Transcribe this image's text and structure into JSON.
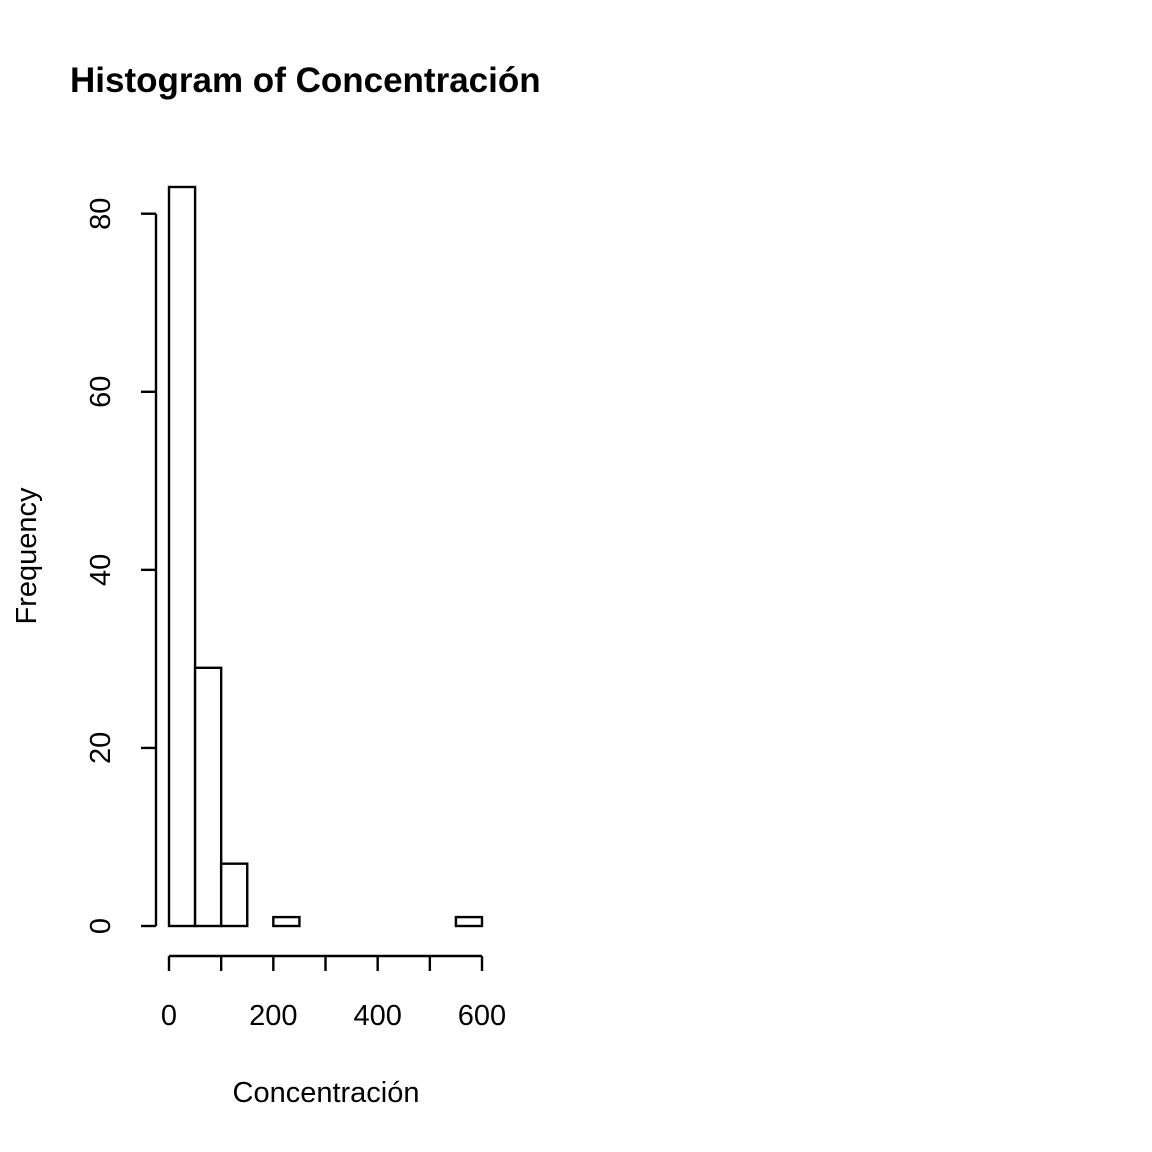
{
  "chart_data": {
    "type": "bar",
    "title": "Histogram of Concentración",
    "xlabel": "Concentración",
    "ylabel": "Frequency",
    "bin_edges": [
      0,
      50,
      100,
      150,
      200,
      250,
      300,
      350,
      400,
      450,
      500,
      550,
      600
    ],
    "values": [
      83,
      29,
      7,
      0,
      1,
      0,
      0,
      0,
      0,
      0,
      0,
      1
    ],
    "xlim": [
      0,
      600
    ],
    "ylim": [
      0,
      83
    ],
    "x_ticks": [
      0,
      100,
      200,
      300,
      400,
      500,
      600
    ],
    "x_tick_labels": [
      "0",
      "200",
      "400",
      "600"
    ],
    "x_tick_label_values": [
      0,
      200,
      400,
      600
    ],
    "y_ticks": [
      0,
      20,
      40,
      60,
      80
    ],
    "y_tick_labels": [
      "0",
      "20",
      "40",
      "60",
      "80"
    ],
    "grid": false,
    "legend": "none",
    "bar_fill": "#ffffff",
    "bar_stroke": "#000000"
  }
}
